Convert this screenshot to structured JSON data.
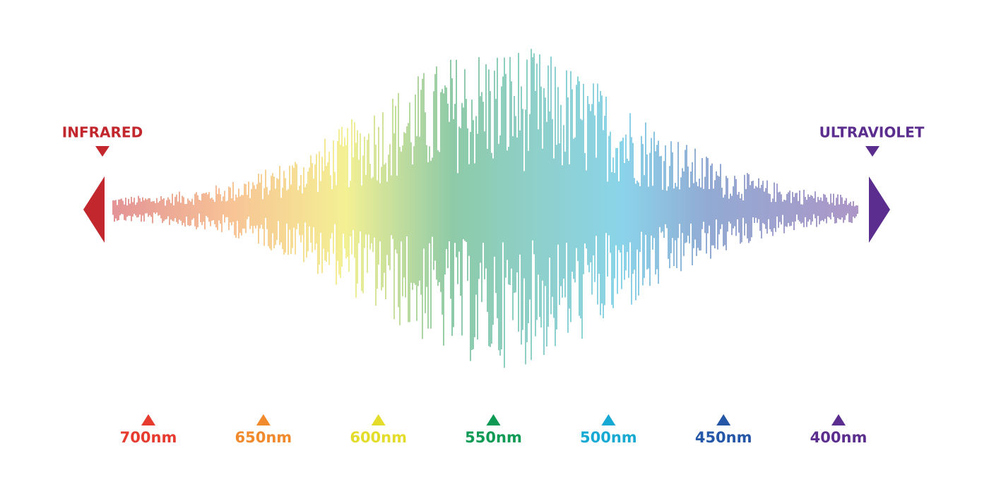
{
  "left_label": {
    "text": "INFRARED",
    "color": "#c1272d"
  },
  "right_label": {
    "text": "ULTRAVIOLET",
    "color": "#5b2d8e"
  },
  "wavelengths": [
    {
      "label": "700nm",
      "color": "#e63b2e"
    },
    {
      "label": "650nm",
      "color": "#f08a2c"
    },
    {
      "label": "600nm",
      "color": "#e3dc2a"
    },
    {
      "label": "550nm",
      "color": "#0d9a55"
    },
    {
      "label": "500nm",
      "color": "#16a9d4"
    },
    {
      "label": "450nm",
      "color": "#2457a8"
    },
    {
      "label": "400nm",
      "color": "#5b2d8e"
    }
  ]
}
